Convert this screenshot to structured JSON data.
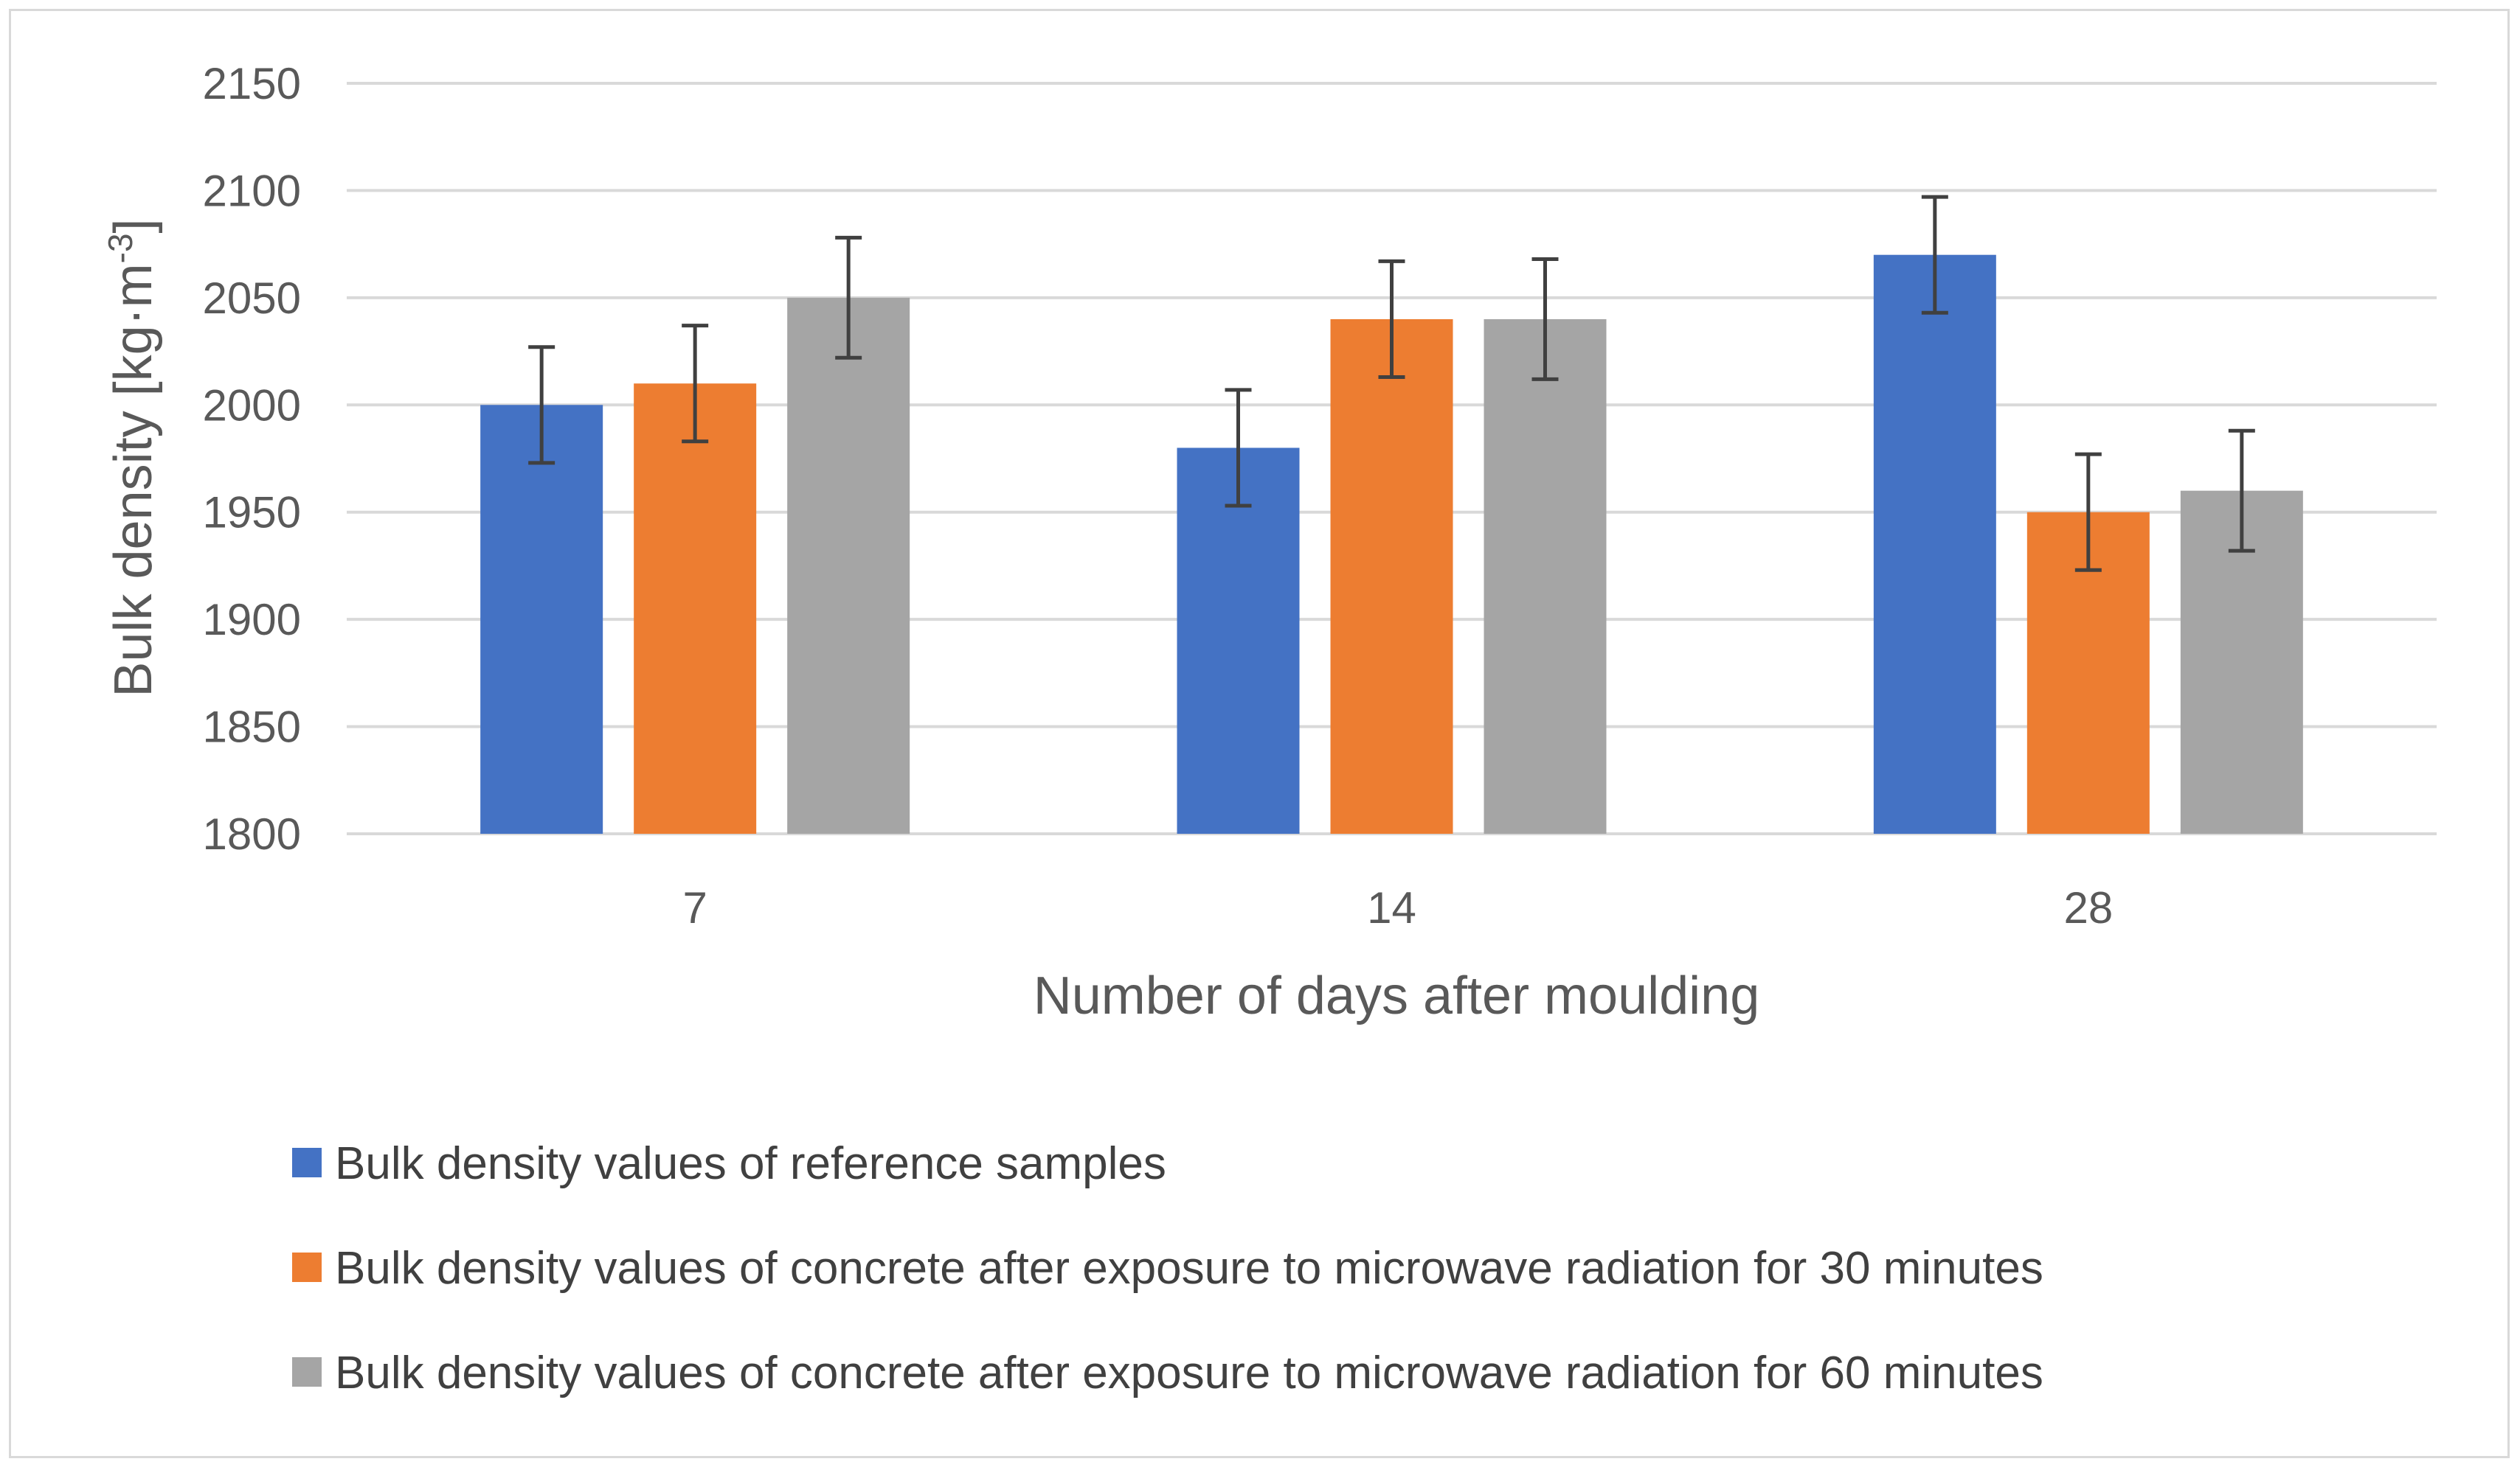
{
  "chart_data": {
    "type": "bar",
    "title": "",
    "xlabel": "Number of days after moulding",
    "ylabel": "Bulk density [kg·m",
    "ylabel_sup": "-3",
    "ylabel_end": "]",
    "categories": [
      "7",
      "14",
      "28"
    ],
    "ylim": [
      1800,
      2150
    ],
    "yticks": [
      1800,
      1850,
      1900,
      1950,
      2000,
      2050,
      2100,
      2150
    ],
    "grid": true,
    "legend_position": "bottom",
    "series": [
      {
        "name": "Bulk density values of reference samples",
        "color": "#4472C4",
        "values": [
          2000,
          1980,
          2070
        ],
        "error": [
          27,
          27,
          27
        ]
      },
      {
        "name": "Bulk density values of concrete after exposure to microwave radiation for 30 minutes",
        "color": "#ED7D31",
        "values": [
          2010,
          2040,
          1950
        ],
        "error": [
          27,
          27,
          27
        ]
      },
      {
        "name": "Bulk density values of concrete after exposure to microwave radiation for 60 minutes",
        "color": "#A5A5A5",
        "values": [
          2050,
          2040,
          1960
        ],
        "error": [
          28,
          28,
          28
        ]
      }
    ]
  }
}
